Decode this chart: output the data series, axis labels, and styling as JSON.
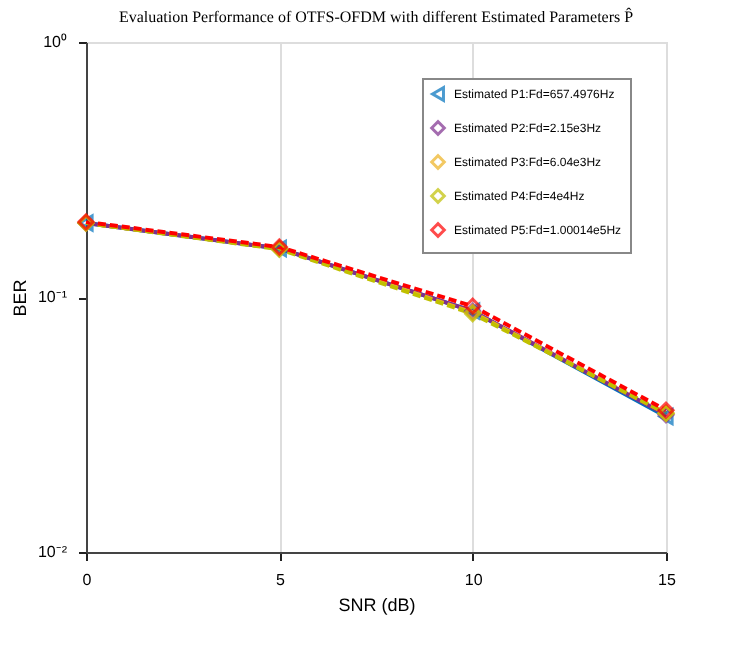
{
  "chart_data": {
    "type": "line",
    "title": "Evaluation Performance of OTFS-OFDM with different Estimated Parameters P̂",
    "xlabel": "SNR (dB)",
    "ylabel": "BER",
    "x": [
      0,
      5,
      10,
      15
    ],
    "series": [
      {
        "name": "Estimated P1:Fd=657.4976Hz",
        "color": "#0072bd",
        "marker": "triangle",
        "line_style": "solid",
        "values": [
          0.195,
          0.155,
          0.088,
          0.034
        ]
      },
      {
        "name": "Estimated P2:Fd=2.15e3Hz",
        "color": "#7e2f8e",
        "marker": "diamond",
        "line_style": "solid",
        "values": [
          0.195,
          0.155,
          0.088,
          0.0345
        ]
      },
      {
        "name": "Estimated P3:Fd=6.04e3Hz",
        "color": "#edb120",
        "marker": "diamond",
        "line_style": "dashed",
        "values": [
          0.195,
          0.155,
          0.087,
          0.035
        ]
      },
      {
        "name": "Estimated P4:Fd=4e4Hz",
        "color": "#c0c000",
        "marker": "diamond",
        "line_style": "dashed",
        "values": [
          0.195,
          0.154,
          0.086,
          0.035
        ]
      },
      {
        "name": "Estimated P5:Fd=1.00014e5Hz",
        "color": "#ff0000",
        "marker": "diamond",
        "line_style": "dashed",
        "values": [
          0.197,
          0.157,
          0.092,
          0.036
        ]
      }
    ],
    "xlim": [
      0,
      15
    ],
    "xticks": [
      0,
      5,
      10,
      15
    ],
    "ylim": [
      0.01,
      1
    ],
    "log": true,
    "yticks": [
      {
        "value": 0.01,
        "label": "10⁻²"
      },
      {
        "value": 0.1,
        "label": "10⁻¹"
      },
      {
        "value": 1,
        "label": "10⁰"
      }
    ],
    "grid": "x",
    "legend": "top right"
  }
}
